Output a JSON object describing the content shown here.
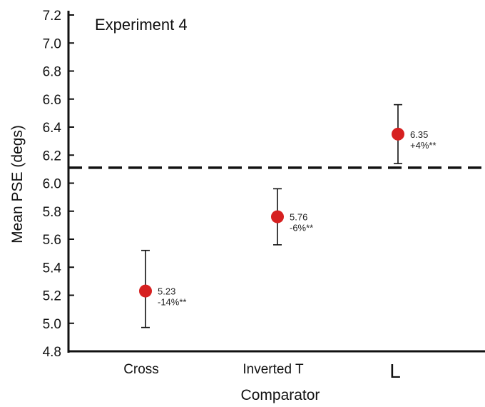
{
  "chart_data": {
    "type": "scatter",
    "annotation_title": "Experiment 4",
    "xlabel": "Comparator",
    "ylabel": "Mean PSE (degs)",
    "ylim": [
      4.8,
      7.2
    ],
    "yticks": [
      "4.8",
      "5.0",
      "5.2",
      "5.4",
      "5.6",
      "5.8",
      "6.0",
      "6.2",
      "6.4",
      "6.6",
      "6.8",
      "7.0",
      "7.2"
    ],
    "categories": [
      "Cross",
      "Inverted T",
      "L"
    ],
    "points": [
      {
        "category": "Cross",
        "mean": 5.23,
        "err_low": 4.97,
        "err_high": 5.52,
        "value_label": "5.23",
        "pct_label": "-14%**"
      },
      {
        "category": "Inverted T",
        "mean": 5.76,
        "err_low": 5.56,
        "err_high": 5.96,
        "value_label": "5.76",
        "pct_label": "-6%**"
      },
      {
        "category": "L",
        "mean": 6.35,
        "err_low": 6.14,
        "err_high": 6.56,
        "value_label": "6.35",
        "pct_label": "+4%**"
      }
    ],
    "reference_line": {
      "value": 6.11,
      "style": "dashed"
    },
    "marker_color": "#d62020",
    "grid": false,
    "legend": "none"
  }
}
